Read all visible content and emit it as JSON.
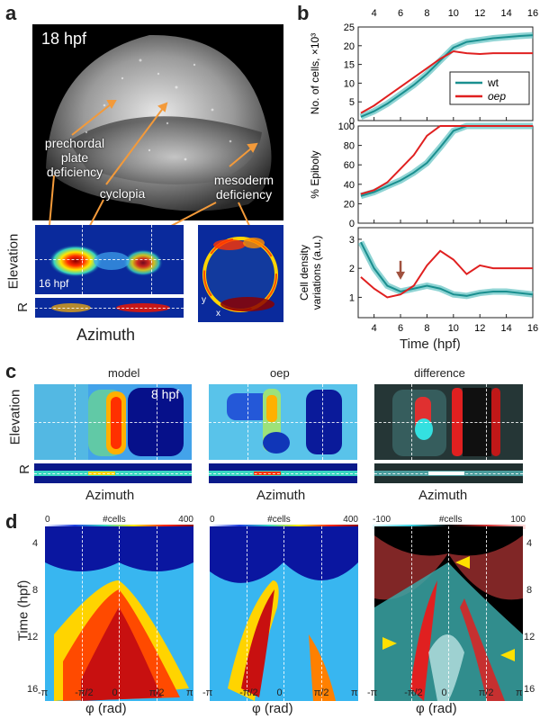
{
  "panel_a": {
    "letter": "a",
    "stage_main": "18 hpf",
    "stage_small": "16 hpf",
    "callouts": [
      "prechordal\nplate\ndeficiency",
      "cyclopia",
      "mesoderm\ndeficiency"
    ],
    "ylabel_top": "Elevation",
    "ylabel_bottom": "R",
    "xlabel": "Azimuth",
    "axis_y": "y",
    "axis_x": "x"
  },
  "panel_b": {
    "letter": "b",
    "xlabel": "Time (hpf)",
    "top_ticks": [
      "4",
      "6",
      "8",
      "10",
      "12",
      "14",
      "16"
    ],
    "bottom_ticks": [
      "4",
      "6",
      "8",
      "10",
      "12",
      "14",
      "16"
    ],
    "legend": [
      "wt",
      "oep"
    ],
    "colors": {
      "wt": "#1a8f8f",
      "wt_band": "#5fc2c2",
      "oep": "#e02020",
      "arrow": "#a0513e"
    }
  },
  "panel_c": {
    "letter": "c",
    "titles": [
      "model",
      "oep",
      "difference"
    ],
    "stage": "8 hpf",
    "ylabel_top": "Elevation",
    "ylabel_bottom": "R",
    "xlabels": [
      "Azimuth",
      "Azimuth",
      "Azimuth"
    ]
  },
  "panel_d": {
    "letter": "d",
    "ylabel": "Time (hpf)",
    "xlabel": "φ (rad)",
    "colorbars": [
      {
        "min": "0",
        "label": "#cells",
        "max": "400"
      },
      {
        "min": "0",
        "label": "#cells",
        "max": "400"
      },
      {
        "min": "-100",
        "label": "#cells",
        "max": "100"
      }
    ],
    "yticks": [
      "4",
      "8",
      "12",
      "16"
    ],
    "xticks": [
      "-π",
      "-π/2",
      "0",
      "π/2",
      "π"
    ]
  },
  "chart_data": [
    {
      "type": "line",
      "ylabel": "No. of cells, ×10³",
      "xlim": [
        2.8,
        16
      ],
      "ylim": [
        0,
        25
      ],
      "yticks": [
        "0",
        "5",
        "10",
        "15",
        "20",
        "25"
      ],
      "series": [
        {
          "name": "wt",
          "x": [
            3,
            4,
            5,
            6,
            7,
            8,
            9,
            10,
            11,
            12,
            13,
            14,
            15,
            16
          ],
          "y": [
            1,
            2.5,
            4.5,
            7,
            9.5,
            12.5,
            16,
            19.5,
            21,
            21.5,
            22,
            22.3,
            22.6,
            22.8
          ]
        },
        {
          "name": "oep",
          "x": [
            3,
            4,
            5,
            6,
            7,
            8,
            9,
            10,
            11,
            12,
            13,
            14,
            15,
            16
          ],
          "y": [
            2,
            4,
            6.5,
            9,
            11.5,
            14,
            16.5,
            18.5,
            18,
            17.8,
            18,
            18,
            18,
            18
          ]
        }
      ]
    },
    {
      "type": "line",
      "ylabel": "% Epiboly",
      "xlim": [
        2.8,
        16
      ],
      "ylim": [
        0,
        100
      ],
      "yticks": [
        "0",
        "20",
        "40",
        "60",
        "80",
        "100"
      ],
      "series": [
        {
          "name": "wt",
          "x": [
            3,
            4,
            5,
            6,
            7,
            8,
            9,
            10,
            11,
            12,
            13,
            14,
            15,
            16
          ],
          "y": [
            28,
            32,
            38,
            44,
            52,
            62,
            78,
            95,
            100,
            100,
            100,
            100,
            100,
            100
          ]
        },
        {
          "name": "oep",
          "x": [
            3,
            4,
            5,
            6,
            7,
            8,
            9,
            10,
            11,
            12,
            13,
            14,
            15,
            16
          ],
          "y": [
            30,
            34,
            42,
            56,
            70,
            90,
            100,
            100,
            100,
            100,
            100,
            100,
            100,
            100
          ]
        }
      ]
    },
    {
      "type": "line",
      "ylabel": "Cell density variations (a.u.)",
      "xlim": [
        2.8,
        16
      ],
      "ylim": [
        0.3,
        3.4
      ],
      "yticks": [
        "1",
        "2",
        "3"
      ],
      "annotation": {
        "type": "arrow",
        "x": 6,
        "y": 1.7
      },
      "series": [
        {
          "name": "wt",
          "x": [
            3,
            4,
            5,
            6,
            7,
            8,
            9,
            10,
            11,
            12,
            13,
            14,
            15,
            16
          ],
          "y": [
            2.9,
            2.0,
            1.4,
            1.2,
            1.3,
            1.4,
            1.3,
            1.1,
            1.05,
            1.15,
            1.2,
            1.2,
            1.15,
            1.1
          ]
        },
        {
          "name": "oep",
          "x": [
            3,
            4,
            5,
            6,
            7,
            8,
            9,
            10,
            11,
            12,
            13,
            14,
            15,
            16
          ],
          "y": [
            1.7,
            1.3,
            1.0,
            1.1,
            1.4,
            2.1,
            2.6,
            2.3,
            1.8,
            2.1,
            2.0,
            2.0,
            2.0,
            2.0
          ]
        }
      ]
    }
  ]
}
